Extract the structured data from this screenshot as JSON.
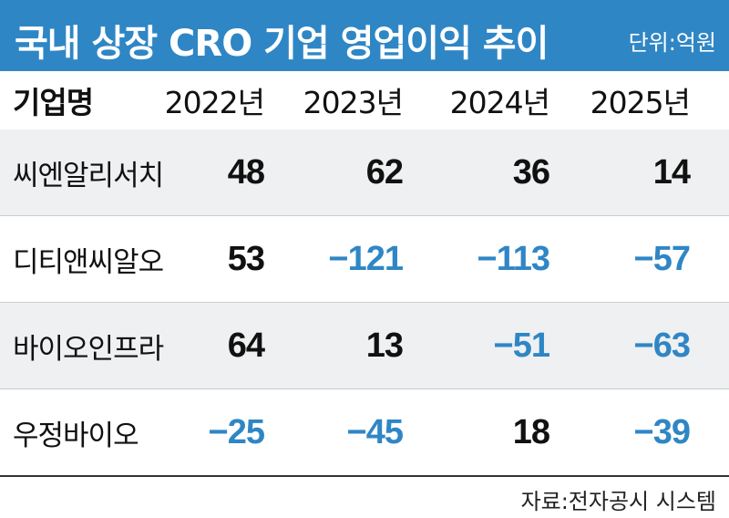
{
  "header": {
    "title": "국내 상장 CRO 기업 영업이익 추이",
    "unit": "단위:억원"
  },
  "footer": {
    "source": "자료:전자공시 시스템"
  },
  "colors": {
    "title_bg": "#2f86c5",
    "positive": "#111111",
    "negative": "#2f86c5",
    "row_alt_bg": "#eef0f1"
  },
  "chart_data": {
    "type": "table",
    "title": "국내 상장 CRO 기업 영업이익 추이",
    "unit": "단위:억원",
    "columns": [
      "기업명",
      "2022년",
      "2023년",
      "2024년",
      "2025년"
    ],
    "rows": [
      {
        "name": "씨엔알리서치",
        "values": [
          48,
          62,
          36,
          14
        ]
      },
      {
        "name": "디티앤씨알오",
        "values": [
          53,
          -121,
          -113,
          -57
        ]
      },
      {
        "name": "바이오인프라",
        "values": [
          64,
          13,
          -51,
          -63
        ]
      },
      {
        "name": "우정바이오",
        "values": [
          -25,
          -45,
          18,
          -39
        ]
      }
    ]
  }
}
